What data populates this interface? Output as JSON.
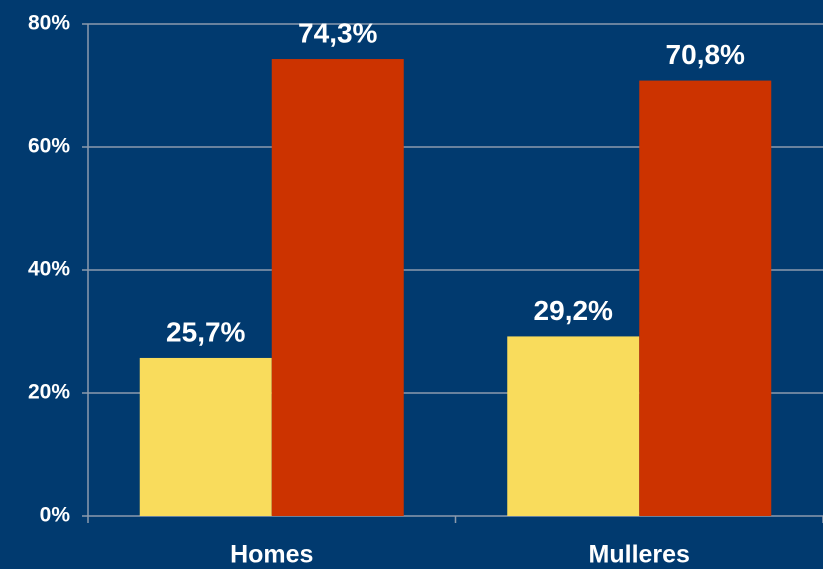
{
  "chart_data": {
    "type": "bar",
    "categories": [
      "Homes",
      "Mulleres"
    ],
    "series": [
      {
        "color": "#f9dc5c",
        "values": [
          25.7,
          29.2
        ],
        "value_labels": [
          "25,7%",
          "29,2%"
        ]
      },
      {
        "color": "#cc3300",
        "values": [
          74.3,
          70.8
        ],
        "value_labels": [
          "74,3%",
          "70,8%"
        ]
      }
    ],
    "ylim": [
      0,
      80
    ],
    "yticks": [
      {
        "value": 0,
        "label": "0%"
      },
      {
        "value": 20,
        "label": "20%"
      },
      {
        "value": 40,
        "label": "40%"
      },
      {
        "value": 60,
        "label": "60%"
      },
      {
        "value": 80,
        "label": "80%"
      }
    ],
    "grid": true
  }
}
